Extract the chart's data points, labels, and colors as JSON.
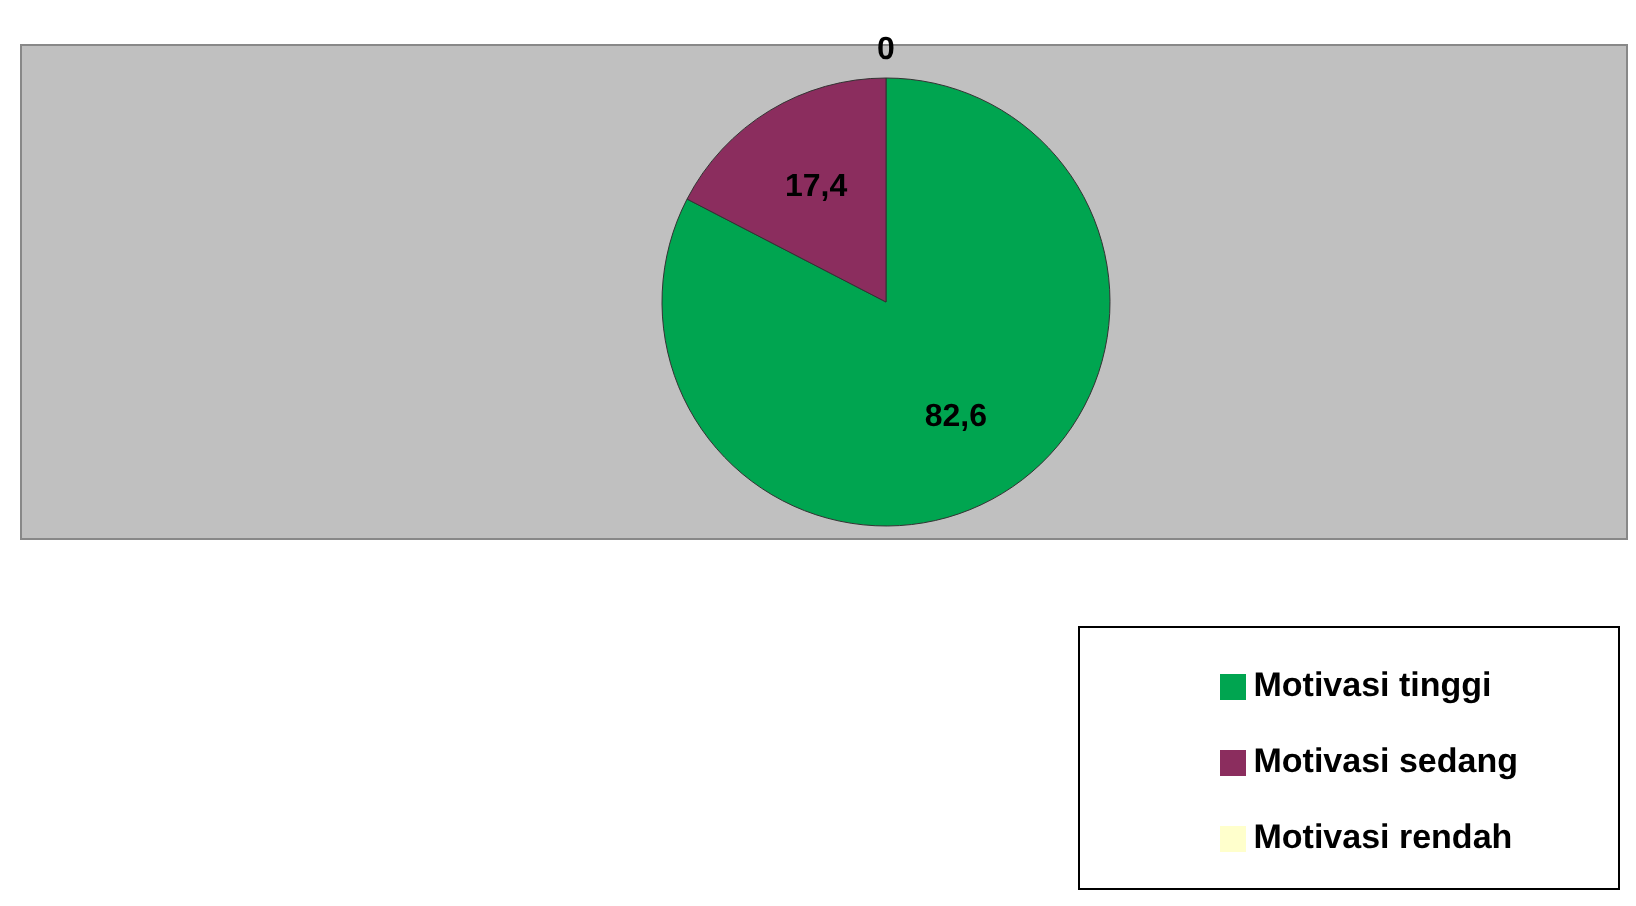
{
  "chart_data": {
    "type": "pie",
    "categories": [
      "Motivasi tinggi",
      "Motivasi sedang",
      "Motivasi rendah"
    ],
    "values": [
      82.6,
      17.4,
      0
    ],
    "colors": [
      "#00a550",
      "#8b2d5e",
      "#ffffcc"
    ],
    "value_labels": [
      "82,6",
      "17,4",
      "0"
    ],
    "legend": "bottom right"
  }
}
